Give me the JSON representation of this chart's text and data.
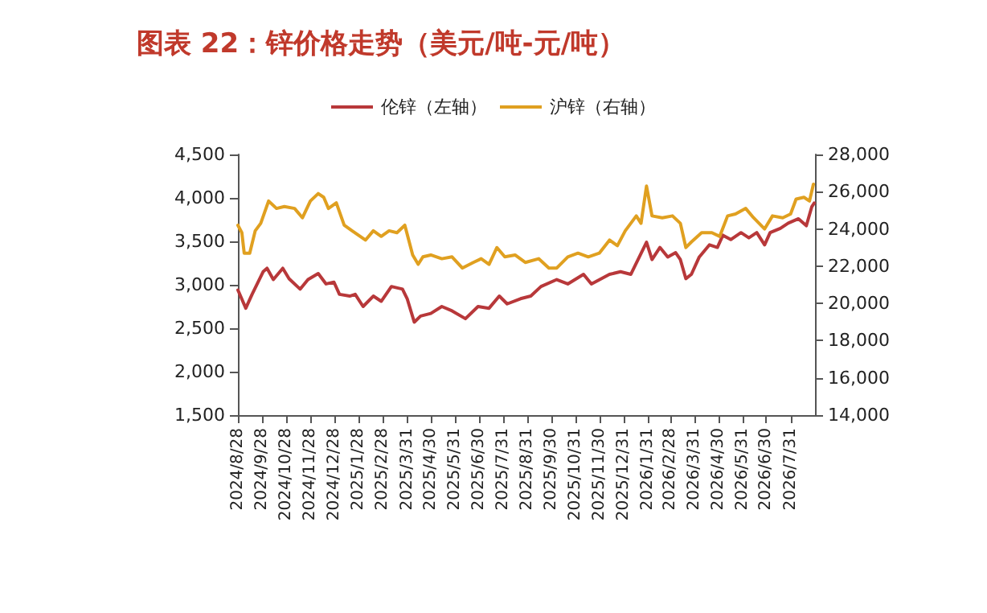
{
  "chart_data": {
    "type": "line",
    "title": "图表 22：锌价格走势（美元/吨-元/吨）",
    "legend": "top",
    "grid": false,
    "marker": "none",
    "line_style": "solid",
    "xlim": [
      "2024-08-28",
      "2026-08-31"
    ],
    "xticks": [
      {
        "value": "2024-08-28",
        "label": "2024/8/28"
      },
      {
        "value": "2024-09-28",
        "label": "2024/9/28"
      },
      {
        "value": "2024-10-28",
        "label": "2024/10/28"
      },
      {
        "value": "2024-11-28",
        "label": "2024/11/28"
      },
      {
        "value": "2024-12-28",
        "label": "2024/12/28"
      },
      {
        "value": "2025-01-28",
        "label": "2025/1/28"
      },
      {
        "value": "2025-02-28",
        "label": "2025/2/28"
      },
      {
        "value": "2025-03-31",
        "label": "2025/3/31"
      },
      {
        "value": "2025-04-30",
        "label": "2025/4/30"
      },
      {
        "value": "2025-05-31",
        "label": "2025/5/31"
      },
      {
        "value": "2025-06-30",
        "label": "2025/6/30"
      },
      {
        "value": "2025-07-31",
        "label": "2025/7/31"
      },
      {
        "value": "2025-08-31",
        "label": "2025/8/31"
      },
      {
        "value": "2025-09-30",
        "label": "2025/9/30"
      },
      {
        "value": "2025-10-31",
        "label": "2025/10/31"
      },
      {
        "value": "2025-11-30",
        "label": "2025/11/30"
      },
      {
        "value": "2025-12-31",
        "label": "2025/12/31"
      },
      {
        "value": "2026-01-31",
        "label": "2026/1/31"
      },
      {
        "value": "2026-02-28",
        "label": "2026/2/28"
      },
      {
        "value": "2026-03-31",
        "label": "2026/3/31"
      },
      {
        "value": "2026-04-30",
        "label": "2026/4/30"
      },
      {
        "value": "2026-05-31",
        "label": "2026/5/31"
      },
      {
        "value": "2026-06-30",
        "label": "2026/6/30"
      },
      {
        "value": "2026-07-31",
        "label": "2026/7/31"
      }
    ],
    "ylim": [
      1500,
      4500
    ],
    "yticks": [
      {
        "value": 1500,
        "label": "1,500"
      },
      {
        "value": 2000,
        "label": "2,000"
      },
      {
        "value": 2500,
        "label": "2,500"
      },
      {
        "value": 3000,
        "label": "3,000"
      },
      {
        "value": 3500,
        "label": "3,500"
      },
      {
        "value": 4000,
        "label": "4,000"
      },
      {
        "value": 4500,
        "label": "4,500"
      }
    ],
    "y2lim": [
      14000,
      28000
    ],
    "y2ticks": [
      {
        "value": 14000,
        "label": "14,000"
      },
      {
        "value": 16000,
        "label": "16,000"
      },
      {
        "value": 18000,
        "label": "18,000"
      },
      {
        "value": 20000,
        "label": "20,000"
      },
      {
        "value": 22000,
        "label": "22,000"
      },
      {
        "value": 24000,
        "label": "24,000"
      },
      {
        "value": 26000,
        "label": "26,000"
      },
      {
        "value": 28000,
        "label": "28,000"
      }
    ],
    "series": [
      {
        "name": "伦锌（左轴）",
        "color": "#b8383a",
        "axis": "y",
        "x": [
          "2024-08-28",
          "2024-09-07",
          "2024-09-15",
          "2024-09-29",
          "2024-10-04",
          "2024-10-12",
          "2024-10-24",
          "2024-11-01",
          "2024-11-15",
          "2024-11-25",
          "2024-12-08",
          "2024-12-18",
          "2024-12-28",
          "2025-01-04",
          "2025-01-17",
          "2025-01-24",
          "2025-02-03",
          "2025-02-16",
          "2025-02-26",
          "2025-03-11",
          "2025-03-25",
          "2025-03-31",
          "2025-04-09",
          "2025-04-17",
          "2025-04-30",
          "2025-05-14",
          "2025-05-27",
          "2025-06-13",
          "2025-06-29",
          "2025-07-13",
          "2025-07-26",
          "2025-08-05",
          "2025-08-22",
          "2025-09-04",
          "2025-09-17",
          "2025-10-07",
          "2025-10-21",
          "2025-11-10",
          "2025-11-20",
          "2025-12-13",
          "2025-12-27",
          "2026-01-09",
          "2026-01-29",
          "2026-02-05",
          "2026-02-15",
          "2026-02-25",
          "2026-03-07",
          "2026-03-13",
          "2026-03-20",
          "2026-03-27",
          "2026-04-06",
          "2026-04-19",
          "2026-04-29",
          "2026-05-06",
          "2026-05-16",
          "2026-05-29",
          "2026-06-08",
          "2026-06-18",
          "2026-06-28",
          "2026-07-05",
          "2026-07-18",
          "2026-07-28",
          "2026-08-10",
          "2026-08-20",
          "2026-08-27",
          "2026-08-30"
        ],
        "values": [
          2940,
          2730,
          2890,
          3150,
          3190,
          3060,
          3190,
          3070,
          2950,
          3060,
          3130,
          3010,
          3030,
          2890,
          2870,
          2890,
          2750,
          2870,
          2810,
          2980,
          2950,
          2840,
          2570,
          2640,
          2670,
          2750,
          2700,
          2610,
          2750,
          2730,
          2870,
          2780,
          2840,
          2870,
          2980,
          3060,
          3010,
          3120,
          3010,
          3120,
          3150,
          3120,
          3490,
          3290,
          3430,
          3320,
          3370,
          3290,
          3070,
          3120,
          3320,
          3460,
          3430,
          3570,
          3520,
          3600,
          3540,
          3600,
          3460,
          3600,
          3650,
          3710,
          3760,
          3680,
          3900,
          3940
        ]
      },
      {
        "name": "沪锌（右轴）",
        "color": "#e0a020",
        "axis": "y2",
        "x": [
          "2024-08-28",
          "2024-09-02",
          "2024-09-05",
          "2024-09-12",
          "2024-09-19",
          "2024-09-26",
          "2024-10-06",
          "2024-10-16",
          "2024-10-26",
          "2024-11-08",
          "2024-11-18",
          "2024-11-28",
          "2024-12-08",
          "2024-12-15",
          "2024-12-21",
          "2024-12-31",
          "2025-01-10",
          "2025-01-20",
          "2025-02-06",
          "2025-02-16",
          "2025-02-26",
          "2025-03-08",
          "2025-03-18",
          "2025-03-28",
          "2025-04-07",
          "2025-04-14",
          "2025-04-20",
          "2025-04-30",
          "2025-05-14",
          "2025-05-27",
          "2025-06-09",
          "2025-06-23",
          "2025-07-03",
          "2025-07-13",
          "2025-07-23",
          "2025-08-02",
          "2025-08-15",
          "2025-08-28",
          "2025-09-14",
          "2025-09-27",
          "2025-10-07",
          "2025-10-21",
          "2025-11-03",
          "2025-11-16",
          "2025-11-30",
          "2025-12-13",
          "2025-12-23",
          "2026-01-02",
          "2026-01-16",
          "2026-01-22",
          "2026-01-29",
          "2026-02-05",
          "2026-02-18",
          "2026-03-03",
          "2026-03-13",
          "2026-03-20",
          "2026-03-27",
          "2026-04-09",
          "2026-04-22",
          "2026-05-02",
          "2026-05-12",
          "2026-05-22",
          "2026-06-04",
          "2026-06-14",
          "2026-06-28",
          "2026-07-08",
          "2026-07-21",
          "2026-07-31",
          "2026-08-07",
          "2026-08-17",
          "2026-08-24",
          "2026-08-29"
        ],
        "values": [
          24200,
          23800,
          22700,
          22700,
          23900,
          24300,
          25500,
          25100,
          25200,
          25100,
          24600,
          25500,
          25900,
          25700,
          25100,
          25400,
          24200,
          23900,
          23400,
          23900,
          23600,
          23900,
          23800,
          24200,
          22600,
          22100,
          22500,
          22600,
          22400,
          22500,
          21900,
          22200,
          22400,
          22100,
          23000,
          22500,
          22600,
          22200,
          22400,
          21900,
          21900,
          22500,
          22700,
          22500,
          22700,
          23400,
          23100,
          23900,
          24700,
          24300,
          26300,
          24700,
          24600,
          24700,
          24300,
          23000,
          23300,
          23800,
          23800,
          23600,
          24700,
          24800,
          25100,
          24600,
          24000,
          24700,
          24600,
          24800,
          25600,
          25700,
          25500,
          26400
        ]
      }
    ]
  }
}
